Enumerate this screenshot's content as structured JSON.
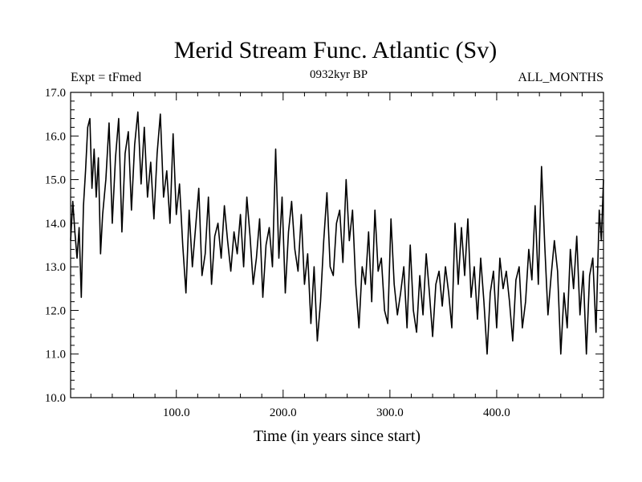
{
  "chart_data": {
    "type": "line",
    "title": "Merid Stream Func. Atlantic (Sv)",
    "subtitle_left": "Expt = tFmed",
    "subtitle_center": "0932kyr BP",
    "subtitle_right": "ALL_MONTHS",
    "xlabel": "Time (in years since start)",
    "ylabel": "",
    "xlim": [
      1,
      500
    ],
    "ylim": [
      10.0,
      17.0
    ],
    "x_ticks": [
      100,
      200,
      300,
      400
    ],
    "x_tick_labels": [
      "100.0",
      "200.0",
      "300.0",
      "400.0"
    ],
    "y_ticks": [
      10,
      11,
      12,
      13,
      14,
      15,
      16,
      17
    ],
    "y_tick_labels": [
      "10.0",
      "11.0",
      "12.0",
      "13.0",
      "14.0",
      "15.0",
      "16.0",
      "17.0"
    ],
    "grid": false,
    "line_color": "#000000",
    "series": [
      {
        "name": "Merid Stream Func. Atlantic",
        "x": [
          1,
          3,
          5,
          7,
          9,
          11,
          13,
          15,
          17,
          19,
          21,
          23,
          25,
          27,
          29,
          31,
          34,
          37,
          40,
          43,
          46,
          49,
          52,
          55,
          58,
          61,
          64,
          67,
          70,
          73,
          76,
          79,
          82,
          85,
          88,
          91,
          94,
          97,
          100,
          103,
          106,
          109,
          112,
          115,
          118,
          121,
          124,
          127,
          130,
          133,
          136,
          139,
          142,
          145,
          148,
          151,
          154,
          157,
          160,
          163,
          166,
          169,
          172,
          175,
          178,
          181,
          184,
          187,
          190,
          193,
          196,
          199,
          202,
          205,
          208,
          211,
          214,
          217,
          220,
          223,
          226,
          229,
          232,
          235,
          238,
          241,
          244,
          247,
          250,
          253,
          256,
          259,
          262,
          265,
          268,
          271,
          274,
          277,
          280,
          283,
          286,
          289,
          292,
          295,
          298,
          301,
          304,
          307,
          310,
          313,
          316,
          319,
          322,
          325,
          328,
          331,
          334,
          337,
          340,
          343,
          346,
          349,
          352,
          355,
          358,
          361,
          364,
          367,
          370,
          373,
          376,
          379,
          382,
          385,
          388,
          391,
          394,
          397,
          400,
          403,
          406,
          409,
          412,
          415,
          418,
          421,
          424,
          427,
          430,
          433,
          436,
          439,
          442,
          445,
          448,
          451,
          454,
          457,
          460,
          463,
          466,
          469,
          472,
          475,
          478,
          481,
          484,
          487,
          490,
          493,
          496,
          498,
          500
        ],
        "y": [
          13.6,
          14.5,
          13.8,
          13.2,
          13.9,
          12.3,
          14.4,
          15.2,
          16.2,
          16.4,
          14.8,
          15.7,
          14.6,
          15.5,
          13.3,
          14.2,
          15.0,
          16.3,
          14.0,
          15.5,
          16.4,
          13.8,
          15.6,
          16.1,
          14.3,
          15.8,
          16.55,
          14.9,
          16.2,
          14.6,
          15.4,
          14.1,
          15.6,
          16.5,
          14.6,
          15.2,
          14.0,
          16.05,
          14.2,
          14.9,
          13.5,
          12.4,
          14.3,
          13.0,
          13.9,
          14.8,
          12.8,
          13.3,
          14.6,
          12.6,
          13.7,
          14.0,
          13.2,
          14.4,
          13.6,
          12.9,
          13.8,
          13.3,
          14.2,
          13.0,
          14.6,
          13.7,
          12.6,
          13.2,
          14.1,
          12.3,
          13.5,
          13.9,
          13.0,
          15.7,
          13.2,
          14.6,
          12.4,
          13.8,
          14.5,
          13.4,
          12.9,
          14.2,
          12.6,
          13.3,
          11.7,
          13.0,
          11.3,
          12.2,
          13.6,
          14.7,
          13.0,
          12.8,
          14.0,
          14.3,
          13.1,
          15.0,
          13.6,
          14.3,
          12.6,
          11.6,
          13.0,
          12.6,
          13.8,
          12.2,
          14.3,
          12.9,
          13.2,
          12.0,
          11.7,
          14.1,
          12.6,
          11.9,
          12.4,
          13.0,
          11.6,
          13.5,
          12.0,
          11.5,
          12.8,
          11.9,
          13.3,
          12.4,
          11.4,
          12.6,
          12.9,
          12.1,
          13.0,
          12.4,
          11.6,
          14.0,
          12.6,
          13.9,
          12.8,
          14.1,
          12.3,
          13.0,
          11.8,
          13.2,
          12.2,
          11.0,
          12.4,
          12.9,
          11.6,
          13.2,
          12.5,
          12.9,
          12.2,
          11.3,
          12.7,
          13.0,
          11.6,
          12.2,
          13.4,
          12.7,
          14.4,
          12.6,
          15.3,
          13.5,
          11.9,
          12.8,
          13.6,
          12.9,
          11.0,
          12.4,
          11.6,
          13.4,
          12.5,
          13.7,
          11.9,
          12.9,
          11.0,
          12.8,
          13.2,
          11.5,
          14.3,
          13.6,
          15.0
        ]
      }
    ]
  }
}
